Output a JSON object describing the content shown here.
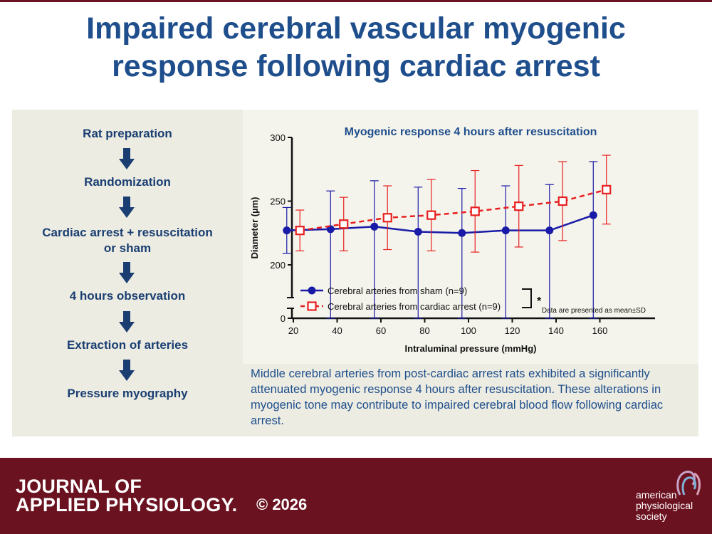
{
  "title": {
    "line1": "Impaired cerebral vascular myogenic",
    "line2": "response following cardiac arrest"
  },
  "protocol_steps": [
    "Rat preparation",
    "Randomization",
    "Cardiac arrest + resuscitation",
    "or sham",
    "4 hours observation",
    "Extraction of arteries",
    "Pressure myography"
  ],
  "chart_data": {
    "type": "line",
    "title": "Myogenic response 4 hours after resuscitation",
    "xlabel": "Intraluminal pressure (mmHg)",
    "ylabel": "Diameter (µm)",
    "x_ticks": [
      20,
      40,
      60,
      80,
      100,
      120,
      140,
      160
    ],
    "y_ticks": [
      0,
      200,
      250,
      300
    ],
    "xlim": [
      15,
      170
    ],
    "ylim": [
      0,
      300
    ],
    "y_axis_break": [
      0,
      180
    ],
    "grid": false,
    "legend_position": "bottom-left",
    "significance_marker": "*",
    "note": "Data are presented as mean±SD",
    "series": [
      {
        "name": "Cerebral arteries from sham (n=9)",
        "color": "#1a1aa8",
        "marker": "filled-circle",
        "line_style": "solid",
        "x": [
          17,
          37,
          57,
          77,
          97,
          117,
          137,
          157
        ],
        "y": [
          227,
          228,
          230,
          226,
          225,
          227,
          227,
          239
        ],
        "sd": [
          18,
          30,
          36,
          35,
          35,
          35,
          36,
          42
        ]
      },
      {
        "name": "Cerebral arteries from cardiac arrest (n=9)",
        "color": "#e82020",
        "marker": "open-square",
        "line_style": "dashed",
        "x": [
          23,
          43,
          63,
          83,
          103,
          123,
          143,
          163
        ],
        "y": [
          227,
          232,
          237,
          239,
          242,
          246,
          250,
          259
        ],
        "sd": [
          16,
          21,
          25,
          28,
          32,
          32,
          31,
          27
        ]
      }
    ]
  },
  "caption": "Middle cerebral arteries from post-cardiac arrest rats exhibited a significantly attenuated myogenic response 4 hours after resuscitation. These alterations in myogenic tone may contribute to impaired cerebral blood flow following cardiac arrest.",
  "footer": {
    "journal_line1": "JOURNAL OF",
    "journal_line2": "APPLIED PHYSIOLOGY.",
    "copyright": "© 2026",
    "society_line1": "american",
    "society_line2": "physiological",
    "society_line3": "society"
  },
  "colors": {
    "title_blue": "#1f4e8c",
    "maroon": "#6b1220"
  }
}
